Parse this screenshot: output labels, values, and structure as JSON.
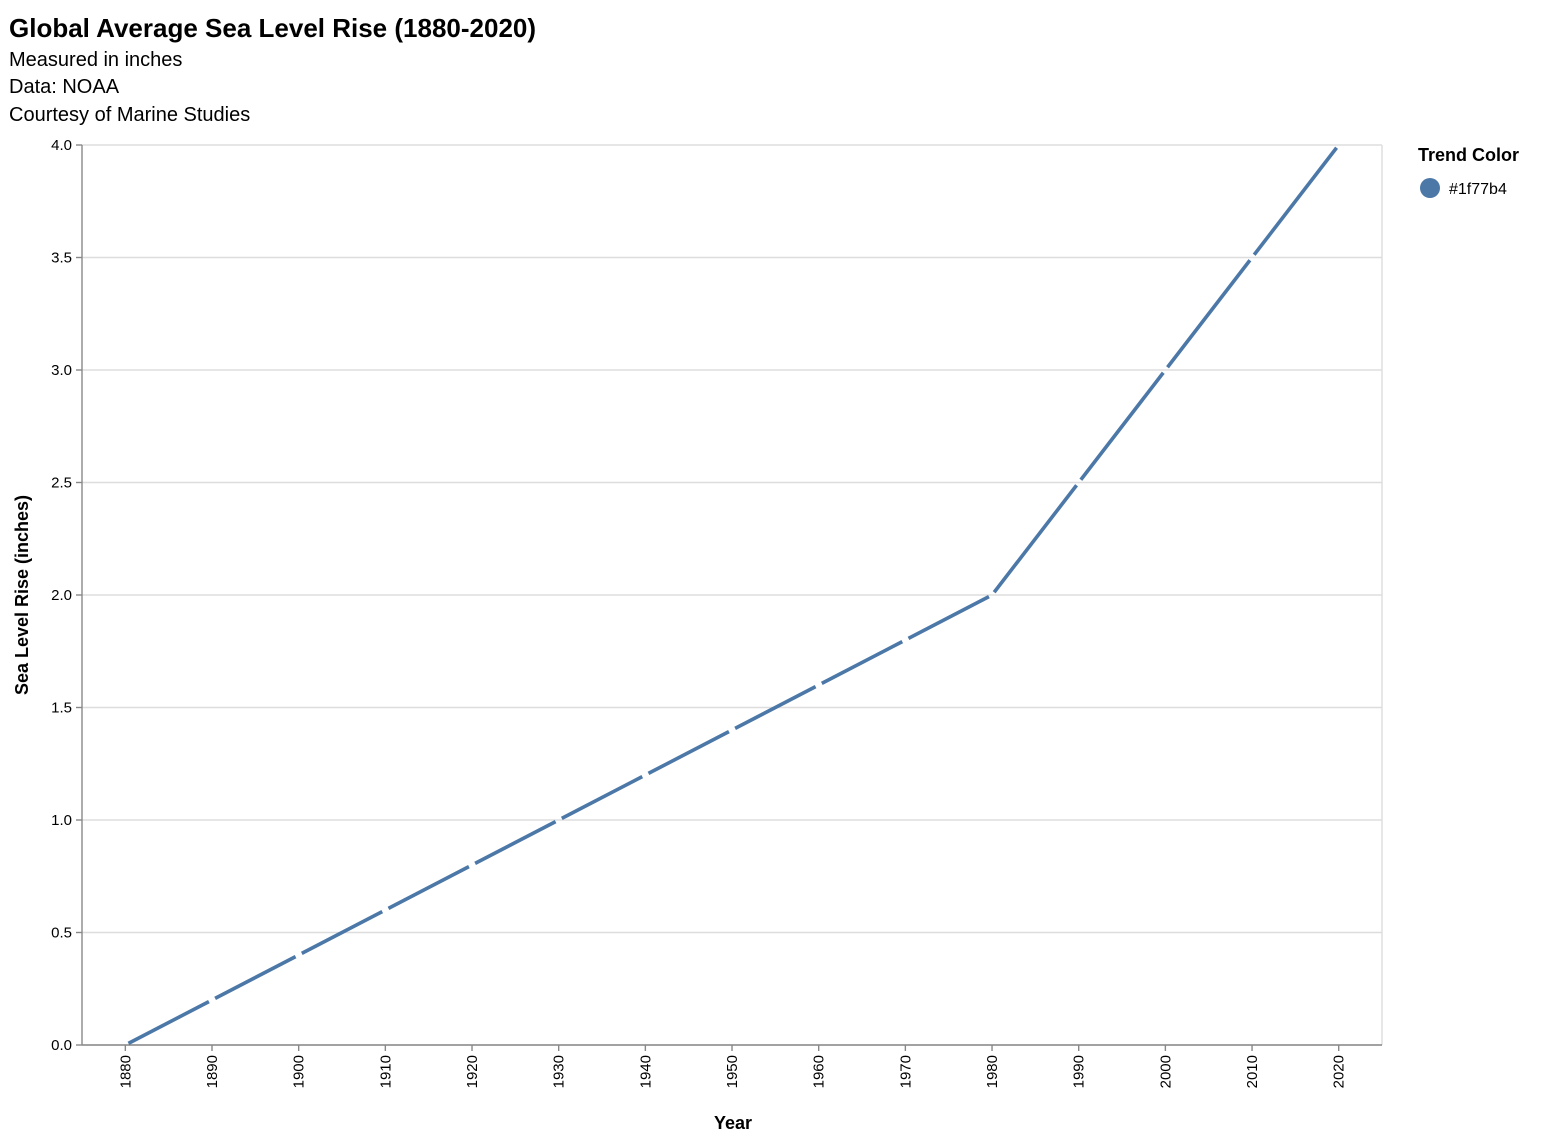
{
  "chart_data": {
    "type": "line",
    "title": "Global Average Sea Level Rise (1880-2020)",
    "subtitle": [
      "Measured in inches",
      "Data: NOAA",
      "Courtesy of Marine Studies"
    ],
    "xlabel": "Year",
    "ylabel": "Sea Level Rise (inches)",
    "x": [
      1880,
      1890,
      1900,
      1910,
      1920,
      1930,
      1940,
      1950,
      1960,
      1970,
      1980,
      1990,
      2000,
      2010,
      2020
    ],
    "x_tick_labels": [
      "1880",
      "1890",
      "1900",
      "1910",
      "1920",
      "1930",
      "1940",
      "1950",
      "1960",
      "1970",
      "1980",
      "1990",
      "2000",
      "2010",
      "2020"
    ],
    "series": [
      {
        "name": "#1f77b4",
        "color": "#4c78a8",
        "values": [
          0.0,
          0.2,
          0.4,
          0.6,
          0.8,
          1.0,
          1.2,
          1.4,
          1.6,
          1.8,
          2.0,
          2.5,
          3.0,
          3.5,
          4.0
        ]
      }
    ],
    "ylim": [
      0,
      4
    ],
    "y_ticks": [
      0.0,
      0.5,
      1.0,
      1.5,
      2.0,
      2.5,
      3.0,
      3.5,
      4.0
    ],
    "y_tick_labels": [
      "0.0",
      "0.5",
      "1.0",
      "1.5",
      "2.0",
      "2.5",
      "3.0",
      "3.5",
      "4.0"
    ],
    "grid": true,
    "legend": {
      "title": "Trend Color",
      "placement": "right",
      "entries": [
        {
          "label": "#1f77b4",
          "color": "#4c78a8"
        }
      ]
    }
  }
}
